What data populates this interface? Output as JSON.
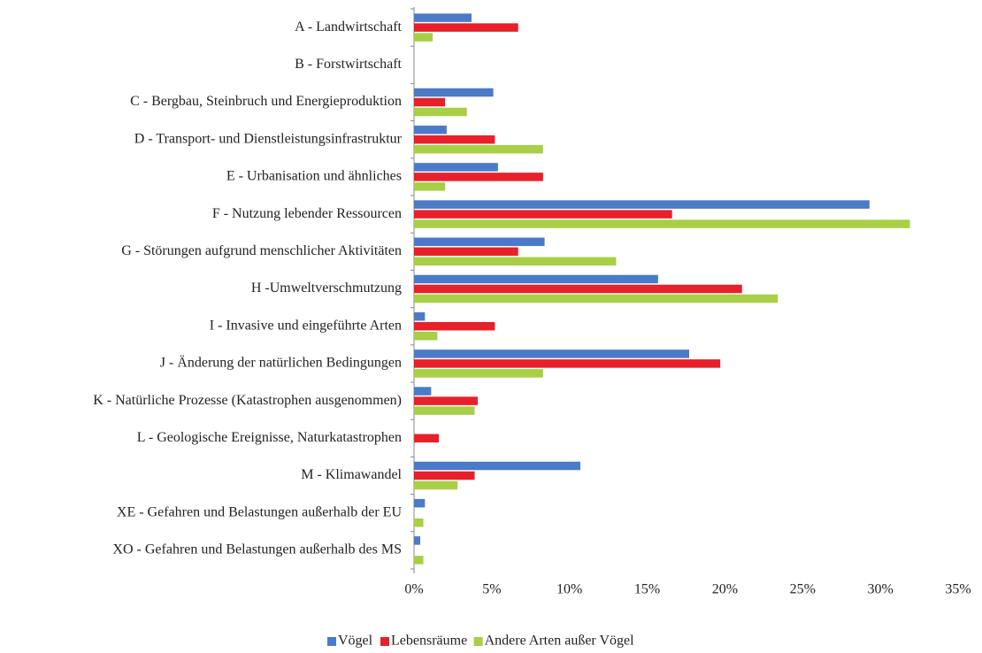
{
  "chart_data": {
    "type": "hbar",
    "categories": [
      "A - Landwirtschaft",
      "B - Forstwirtschaft",
      "C - Bergbau, Steinbruch und Energieproduktion",
      "D - Transport- und Dienstleistungsinfrastruktur",
      "E - Urbanisation und ähnliches",
      "F - Nutzung lebender Ressourcen",
      "G - Störungen aufgrund menschlicher Aktivitäten",
      "H -Umweltverschmutzung",
      "I - Invasive und eingeführte Arten",
      "J - Änderung der natürlichen Bedingungen",
      "K - Natürliche Prozesse (Katastrophen ausgenommen)",
      "L - Geologische Ereignisse, Naturkatastrophen",
      "M - Klimawandel",
      "XE - Gefahren und Belastungen außerhalb der EU",
      "XO - Gefahren und Belastungen außerhalb des MS"
    ],
    "series": [
      {
        "name": "Vögel",
        "color": "#4a7bc8",
        "values": [
          3.7,
          0,
          5.1,
          2.1,
          5.4,
          29.3,
          8.4,
          15.7,
          0.7,
          17.7,
          1.1,
          0,
          10.7,
          0.7,
          0.4
        ]
      },
      {
        "name": "Lebensräume",
        "color": "#e8202a",
        "values": [
          6.7,
          0,
          2.0,
          5.2,
          8.3,
          16.6,
          6.7,
          21.1,
          5.2,
          19.7,
          4.1,
          1.6,
          3.9,
          0,
          0
        ]
      },
      {
        "name": "Andere Arten außer Vögel",
        "color": "#a8cf45",
        "values": [
          1.2,
          0,
          3.4,
          8.3,
          2.0,
          31.9,
          13.0,
          23.4,
          1.5,
          8.3,
          3.9,
          0,
          2.8,
          0.6,
          0.6
        ]
      }
    ],
    "xlim": [
      0,
      35
    ],
    "xticks": [
      {
        "value": 0,
        "label": "0%"
      },
      {
        "value": 5,
        "label": "5%"
      },
      {
        "value": 10,
        "label": "10%"
      },
      {
        "value": 15,
        "label": "15%"
      },
      {
        "value": 20,
        "label": "20%"
      },
      {
        "value": 25,
        "label": "25%"
      },
      {
        "value": 30,
        "label": "30%"
      },
      {
        "value": 35,
        "label": "35%"
      }
    ],
    "legend": "bottom"
  }
}
